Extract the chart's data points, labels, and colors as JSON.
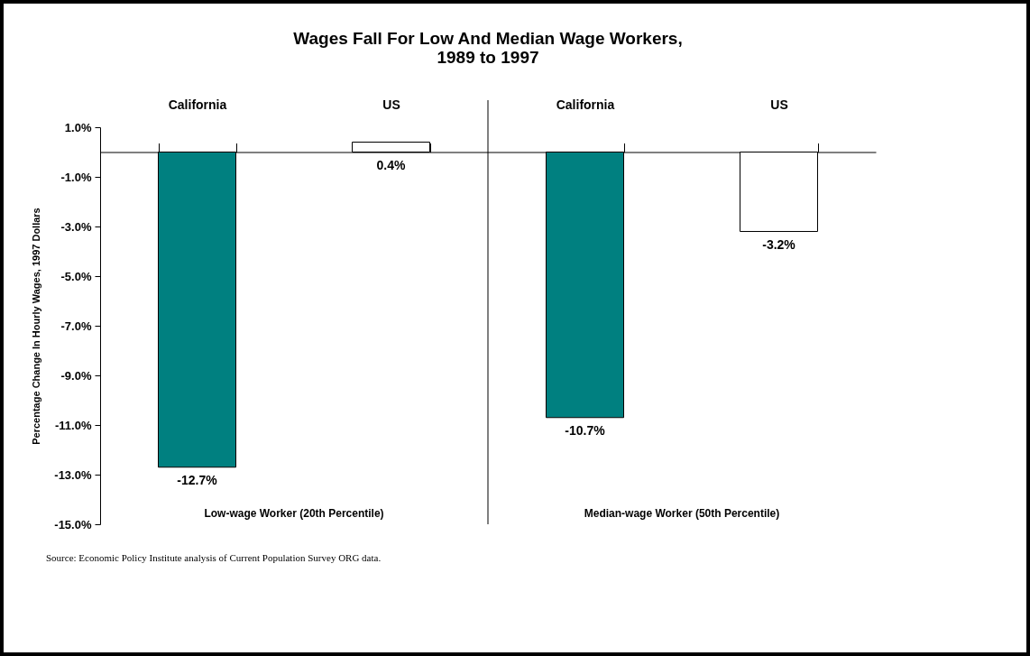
{
  "chart_data": {
    "type": "bar",
    "title": "Wages Fall For Low And Median Wage Workers,\n1989 to 1997",
    "ylabel": "Percentage Change In Hourly Wages, 1997 Dollars",
    "categories": [
      "California",
      "US",
      "California",
      "US"
    ],
    "values": [
      -12.7,
      0.4,
      -10.7,
      -3.2
    ],
    "colors": [
      "#008080",
      "#ffffff",
      "#008080",
      "#ffffff"
    ],
    "value_labels": [
      "-12.7%",
      "0.4%",
      "-10.7%",
      "-3.2%"
    ],
    "ylim": [
      -15,
      1
    ],
    "yticks": [
      {
        "value": 1,
        "label": "1.0%"
      },
      {
        "value": -1,
        "label": "-1.0%"
      },
      {
        "value": -3,
        "label": "-3.0%"
      },
      {
        "value": -5,
        "label": "-5.0%"
      },
      {
        "value": -7,
        "label": "-7.0%"
      },
      {
        "value": -9,
        "label": "-9.0%"
      },
      {
        "value": -11,
        "label": "-11.0%"
      },
      {
        "value": -13,
        "label": "-13.0%"
      },
      {
        "value": -15,
        "label": "-15.0%"
      }
    ],
    "grid": false,
    "annotations": [
      "Low-wage Worker (20th Percentile)",
      "Median-wage Worker  (50th Percentile)",
      "Source: Economic Policy Institute analysis of Current Population Survey ORG data."
    ]
  }
}
